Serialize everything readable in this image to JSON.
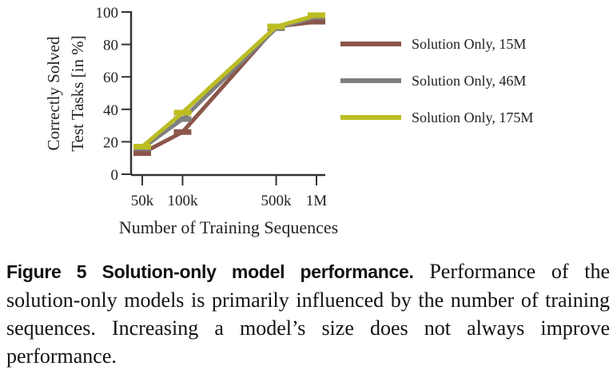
{
  "chart_data": {
    "type": "line",
    "title": "",
    "xlabel": "Number of Training Sequences",
    "ylabel": [
      "Correctly Solved",
      "Test Tasks [in %]"
    ],
    "x": [
      50000,
      100000,
      500000,
      1000000
    ],
    "xtick_labels": [
      "50k",
      "100k",
      "500k",
      "1M"
    ],
    "xscale": "log",
    "ylim": [
      0,
      100
    ],
    "yticks": [
      0,
      20,
      40,
      60,
      80,
      100
    ],
    "grid": false,
    "legend": "right",
    "series": [
      {
        "name": "Solution Only, 15M",
        "color": "#8b564b",
        "values": [
          13,
          26,
          91,
          94
        ]
      },
      {
        "name": "Solution Only, 46M",
        "color": "#7f7f7f",
        "values": [
          16,
          34,
          90,
          97
        ]
      },
      {
        "name": "Solution Only, 175M",
        "color": "#bcbd22",
        "values": [
          17,
          38,
          91,
          98
        ]
      }
    ]
  },
  "caption": {
    "label": "Figure 5  Solution-only model performance.",
    "text": " Performance of the solution-only models is primarily influenced by the number of training sequences. Increasing a model’s size does not always improve performance."
  }
}
